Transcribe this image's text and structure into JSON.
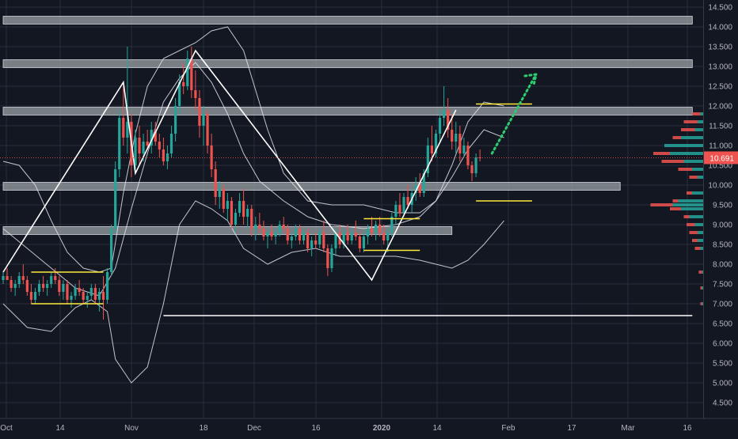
{
  "chart_data": {
    "type": "candlestick",
    "title": "",
    "colors": {
      "background": "#131722",
      "grid": "#2a2e39",
      "up": "#26a69a",
      "down": "#ef5350",
      "bollinger": "#e0e3eb",
      "zone": "#9aa3a6",
      "yellow": "#ffeb3b",
      "projection": "#2ecc71",
      "price_badge": "#ef5350"
    },
    "x_ticks": [
      "Oct",
      "14",
      "Nov",
      "18",
      "Dec",
      "16",
      "2020",
      "14",
      "Feb",
      "17",
      "Mar",
      "16"
    ],
    "y_ticks": [
      "14.500",
      "14.000",
      "13.500",
      "13.000",
      "12.500",
      "12.000",
      "11.500",
      "11.000",
      "10.500",
      "10.000",
      "9.500",
      "9.000",
      "8.500",
      "8.000",
      "7.500",
      "7.000",
      "6.500",
      "6.000",
      "5.500",
      "5.000",
      "4.500"
    ],
    "y_range": [
      4.2,
      14.9
    ],
    "bar_range": [
      0,
      172
    ],
    "last_price_label": "10.691",
    "last_price": 10.691,
    "candles": [
      [
        7.6,
        7.8,
        7.5,
        7.7
      ],
      [
        7.7,
        7.9,
        7.6,
        7.6
      ],
      [
        7.6,
        7.7,
        7.3,
        7.4
      ],
      [
        7.4,
        7.6,
        7.2,
        7.5
      ],
      [
        7.5,
        7.8,
        7.4,
        7.7
      ],
      [
        7.7,
        8.0,
        7.5,
        7.6
      ],
      [
        7.6,
        7.7,
        7.2,
        7.3
      ],
      [
        7.3,
        7.5,
        7.0,
        7.1
      ],
      [
        7.1,
        7.4,
        7.0,
        7.3
      ],
      [
        7.3,
        7.6,
        7.2,
        7.5
      ],
      [
        7.5,
        7.7,
        7.3,
        7.4
      ],
      [
        7.4,
        7.6,
        7.2,
        7.5
      ],
      [
        7.5,
        7.8,
        7.4,
        7.7
      ],
      [
        7.7,
        7.9,
        7.5,
        7.6
      ],
      [
        7.6,
        7.7,
        7.2,
        7.3
      ],
      [
        7.3,
        7.6,
        7.1,
        7.5
      ],
      [
        7.5,
        7.6,
        7.0,
        7.1
      ],
      [
        7.1,
        7.3,
        6.9,
        7.2
      ],
      [
        7.2,
        7.5,
        7.1,
        7.4
      ],
      [
        7.4,
        7.6,
        7.2,
        7.3
      ],
      [
        7.3,
        7.4,
        7.0,
        7.1
      ],
      [
        7.1,
        7.3,
        6.9,
        7.2
      ],
      [
        7.2,
        7.5,
        7.1,
        7.4
      ],
      [
        7.4,
        7.5,
        7.0,
        7.1
      ],
      [
        7.1,
        7.4,
        6.8,
        7.3
      ],
      [
        7.3,
        7.7,
        6.6,
        7.1
      ],
      [
        7.1,
        7.9,
        7.0,
        7.8
      ],
      [
        7.8,
        9.0,
        7.7,
        8.9
      ],
      [
        8.9,
        10.6,
        8.8,
        10.4
      ],
      [
        10.4,
        11.9,
        10.2,
        11.7
      ],
      [
        11.7,
        12.5,
        11.0,
        11.2
      ],
      [
        11.2,
        13.5,
        10.8,
        11.6
      ],
      [
        11.6,
        11.8,
        10.2,
        10.5
      ],
      [
        10.5,
        11.4,
        10.3,
        11.2
      ],
      [
        11.2,
        11.5,
        10.5,
        10.8
      ],
      [
        10.8,
        11.3,
        10.6,
        11.1
      ],
      [
        11.1,
        11.4,
        10.9,
        11.0
      ],
      [
        11.0,
        11.6,
        10.8,
        11.4
      ],
      [
        11.4,
        11.6,
        11.0,
        11.1
      ],
      [
        11.1,
        11.3,
        10.7,
        10.9
      ],
      [
        10.9,
        11.2,
        10.5,
        10.6
      ],
      [
        10.6,
        11.0,
        10.4,
        10.8
      ],
      [
        10.8,
        11.5,
        10.7,
        11.3
      ],
      [
        11.3,
        12.2,
        11.1,
        12.0
      ],
      [
        12.0,
        12.8,
        11.8,
        12.6
      ],
      [
        12.6,
        13.1,
        12.3,
        12.5
      ],
      [
        12.5,
        13.4,
        12.4,
        13.2
      ],
      [
        13.2,
        13.5,
        12.2,
        12.4
      ],
      [
        12.4,
        12.9,
        11.9,
        12.2
      ],
      [
        12.2,
        12.4,
        11.2,
        11.5
      ],
      [
        11.5,
        12.0,
        11.0,
        11.8
      ],
      [
        11.8,
        11.9,
        10.8,
        11.0
      ],
      [
        11.0,
        11.3,
        10.2,
        10.4
      ],
      [
        10.4,
        10.6,
        9.5,
        9.7
      ],
      [
        9.7,
        10.1,
        9.4,
        9.9
      ],
      [
        9.9,
        10.0,
        9.3,
        9.4
      ],
      [
        9.4,
        9.8,
        9.1,
        9.6
      ],
      [
        9.6,
        9.7,
        8.9,
        9.0
      ],
      [
        9.0,
        9.4,
        8.8,
        9.3
      ],
      [
        9.3,
        9.8,
        9.2,
        9.6
      ],
      [
        9.6,
        9.9,
        9.0,
        9.2
      ],
      [
        9.2,
        9.5,
        8.9,
        9.4
      ],
      [
        9.4,
        9.5,
        8.7,
        8.9
      ],
      [
        8.9,
        9.2,
        8.6,
        9.0
      ],
      [
        9.0,
        9.3,
        8.8,
        8.9
      ],
      [
        8.9,
        9.1,
        8.6,
        8.7
      ],
      [
        8.7,
        8.9,
        8.4,
        8.8
      ],
      [
        8.8,
        9.0,
        8.6,
        8.7
      ],
      [
        8.7,
        8.9,
        8.5,
        8.8
      ],
      [
        8.8,
        9.1,
        8.7,
        9.0
      ],
      [
        9.0,
        9.2,
        8.8,
        8.9
      ],
      [
        8.9,
        9.0,
        8.5,
        8.6
      ],
      [
        8.6,
        8.8,
        8.4,
        8.7
      ],
      [
        8.7,
        9.0,
        8.6,
        8.9
      ],
      [
        8.9,
        9.0,
        8.5,
        8.6
      ],
      [
        8.6,
        8.9,
        8.5,
        8.8
      ],
      [
        8.8,
        8.9,
        8.3,
        8.4
      ],
      [
        8.4,
        8.7,
        8.2,
        8.6
      ],
      [
        8.6,
        8.8,
        8.4,
        8.5
      ],
      [
        8.5,
        8.9,
        8.4,
        8.8
      ],
      [
        8.8,
        9.1,
        8.3,
        8.4
      ],
      [
        8.4,
        8.5,
        7.7,
        7.9
      ],
      [
        7.9,
        8.5,
        7.8,
        8.4
      ],
      [
        8.4,
        8.9,
        8.2,
        8.8
      ],
      [
        8.8,
        9.0,
        8.4,
        8.5
      ],
      [
        8.5,
        8.9,
        8.4,
        8.8
      ],
      [
        8.8,
        9.0,
        8.5,
        8.6
      ],
      [
        8.6,
        8.9,
        8.5,
        8.8
      ],
      [
        8.8,
        9.1,
        8.6,
        8.7
      ],
      [
        8.7,
        8.8,
        8.3,
        8.4
      ],
      [
        8.4,
        8.8,
        8.3,
        8.7
      ],
      [
        8.7,
        9.0,
        8.5,
        8.9
      ],
      [
        8.9,
        9.2,
        8.7,
        8.8
      ],
      [
        8.8,
        9.1,
        8.6,
        9.0
      ],
      [
        9.0,
        9.2,
        8.7,
        8.8
      ],
      [
        8.8,
        9.0,
        8.5,
        8.6
      ],
      [
        8.6,
        8.9,
        8.3,
        8.8
      ],
      [
        8.8,
        9.3,
        8.7,
        9.2
      ],
      [
        9.2,
        9.6,
        9.0,
        9.5
      ],
      [
        9.5,
        9.8,
        9.2,
        9.3
      ],
      [
        9.3,
        9.8,
        9.2,
        9.7
      ],
      [
        9.7,
        10.0,
        9.4,
        9.5
      ],
      [
        9.5,
        9.9,
        9.3,
        9.8
      ],
      [
        9.8,
        10.2,
        9.6,
        10.0
      ],
      [
        10.0,
        10.3,
        9.7,
        9.8
      ],
      [
        9.8,
        10.4,
        9.7,
        10.3
      ],
      [
        10.3,
        11.2,
        10.2,
        11.0
      ],
      [
        11.0,
        11.5,
        10.6,
        10.8
      ],
      [
        10.8,
        11.4,
        10.7,
        11.3
      ],
      [
        11.3,
        11.9,
        11.1,
        11.7
      ],
      [
        11.7,
        12.5,
        11.5,
        11.9
      ],
      [
        11.9,
        12.2,
        11.2,
        11.4
      ],
      [
        11.4,
        11.8,
        10.9,
        11.1
      ],
      [
        11.1,
        11.6,
        10.8,
        11.3
      ],
      [
        11.3,
        11.5,
        10.6,
        10.8
      ],
      [
        10.8,
        11.2,
        10.7,
        11.0
      ],
      [
        11.0,
        11.1,
        10.4,
        10.5
      ],
      [
        10.5,
        10.6,
        10.1,
        10.3
      ],
      [
        10.3,
        10.8,
        10.2,
        10.7
      ],
      [
        10.7,
        10.9,
        10.6,
        10.691
      ]
    ],
    "bollinger": {
      "upper": [
        [
          0,
          10.6
        ],
        [
          4,
          10.5
        ],
        [
          8,
          10.0
        ],
        [
          12,
          9.1
        ],
        [
          16,
          8.3
        ],
        [
          20,
          7.9
        ],
        [
          24,
          7.8
        ],
        [
          27,
          7.9
        ],
        [
          30,
          9.8
        ],
        [
          33,
          11.3
        ],
        [
          36,
          12.5
        ],
        [
          40,
          13.2
        ],
        [
          44,
          13.4
        ],
        [
          48,
          13.6
        ],
        [
          52,
          13.9
        ],
        [
          56,
          14.0
        ],
        [
          60,
          13.4
        ],
        [
          63,
          12.4
        ],
        [
          66,
          11.4
        ],
        [
          70,
          10.3
        ],
        [
          76,
          9.6
        ],
        [
          82,
          9.5
        ],
        [
          90,
          9.5
        ],
        [
          98,
          9.3
        ],
        [
          104,
          9.3
        ],
        [
          108,
          9.6
        ],
        [
          112,
          10.5
        ],
        [
          116,
          11.6
        ],
        [
          120,
          12.1
        ],
        [
          125,
          12.0
        ]
      ],
      "middle": [
        [
          0,
          8.9
        ],
        [
          6,
          8.4
        ],
        [
          12,
          7.9
        ],
        [
          18,
          7.4
        ],
        [
          24,
          7.2
        ],
        [
          28,
          7.9
        ],
        [
          32,
          9.4
        ],
        [
          36,
          10.8
        ],
        [
          40,
          12.1
        ],
        [
          44,
          12.7
        ],
        [
          48,
          13.1
        ],
        [
          52,
          12.6
        ],
        [
          56,
          11.8
        ],
        [
          60,
          10.8
        ],
        [
          64,
          10.1
        ],
        [
          70,
          9.6
        ],
        [
          76,
          9.2
        ],
        [
          82,
          9.0
        ],
        [
          90,
          8.9
        ],
        [
          98,
          9.0
        ],
        [
          104,
          9.2
        ],
        [
          108,
          9.6
        ],
        [
          112,
          10.2
        ],
        [
          116,
          10.9
        ],
        [
          120,
          11.4
        ],
        [
          125,
          11.2
        ]
      ],
      "lower": [
        [
          0,
          7.0
        ],
        [
          6,
          6.4
        ],
        [
          12,
          6.3
        ],
        [
          18,
          6.9
        ],
        [
          22,
          7.1
        ],
        [
          26,
          6.8
        ],
        [
          28,
          5.6
        ],
        [
          32,
          5.0
        ],
        [
          36,
          5.4
        ],
        [
          40,
          7.0
        ],
        [
          44,
          9.0
        ],
        [
          48,
          9.6
        ],
        [
          52,
          9.4
        ],
        [
          56,
          9.1
        ],
        [
          60,
          8.4
        ],
        [
          66,
          8.0
        ],
        [
          72,
          8.3
        ],
        [
          78,
          8.4
        ],
        [
          84,
          8.2
        ],
        [
          90,
          8.2
        ],
        [
          98,
          8.2
        ],
        [
          104,
          8.1
        ],
        [
          108,
          8.0
        ],
        [
          112,
          7.9
        ],
        [
          116,
          8.1
        ],
        [
          120,
          8.5
        ],
        [
          125,
          9.1
        ]
      ]
    },
    "zigzag": [
      [
        0,
        7.8
      ],
      [
        30,
        12.6
      ],
      [
        33,
        10.3
      ],
      [
        48,
        13.4
      ],
      [
        92,
        7.6
      ],
      [
        113,
        11.9
      ]
    ],
    "zones": [
      {
        "from": 0,
        "to": 172,
        "low": 14.07,
        "high": 14.27
      },
      {
        "from": 0,
        "to": 172,
        "low": 12.97,
        "high": 13.17
      },
      {
        "from": 0,
        "to": 172,
        "low": 11.77,
        "high": 11.97
      },
      {
        "from": 0,
        "to": 154,
        "low": 9.87,
        "high": 10.07
      },
      {
        "from": 0,
        "to": 112,
        "low": 8.75,
        "high": 8.95
      }
    ],
    "yellow_segments": [
      {
        "from": 7,
        "to": 25,
        "price": 7.8
      },
      {
        "from": 7,
        "to": 25,
        "price": 7.0
      },
      {
        "from": 90,
        "to": 104,
        "price": 9.15
      },
      {
        "from": 90,
        "to": 104,
        "price": 8.35
      },
      {
        "from": 118,
        "to": 132,
        "price": 12.05
      },
      {
        "from": 118,
        "to": 132,
        "price": 9.6
      }
    ],
    "white_level": {
      "from": 40,
      "to": 172,
      "price": 6.7
    },
    "projection": {
      "start": [
        122,
        10.8
      ],
      "end": [
        133,
        12.8
      ]
    },
    "volume_profile": [
      [
        11.8,
        0.2,
        0.05
      ],
      [
        11.6,
        0.35,
        0.1
      ],
      [
        11.4,
        0.4,
        0.15
      ],
      [
        11.2,
        0.55,
        0.4
      ],
      [
        11.0,
        0.65,
        0.7
      ],
      [
        10.8,
        0.9,
        0.6
      ],
      [
        10.6,
        0.75,
        0.35
      ],
      [
        10.4,
        0.45,
        0.2
      ],
      [
        10.2,
        0.25,
        0.1
      ],
      [
        9.8,
        0.3,
        0.2
      ],
      [
        9.6,
        0.55,
        0.45
      ],
      [
        9.5,
        0.95,
        0.55
      ],
      [
        9.4,
        0.6,
        0.4
      ],
      [
        9.2,
        0.35,
        0.25
      ],
      [
        9.0,
        0.3,
        0.15
      ],
      [
        8.8,
        0.25,
        0.1
      ],
      [
        8.6,
        0.2,
        0.1
      ],
      [
        8.4,
        0.15,
        0.05
      ],
      [
        7.8,
        0.08,
        0.02
      ],
      [
        7.4,
        0.05,
        0.02
      ],
      [
        7.0,
        0.05,
        0.02
      ]
    ]
  }
}
